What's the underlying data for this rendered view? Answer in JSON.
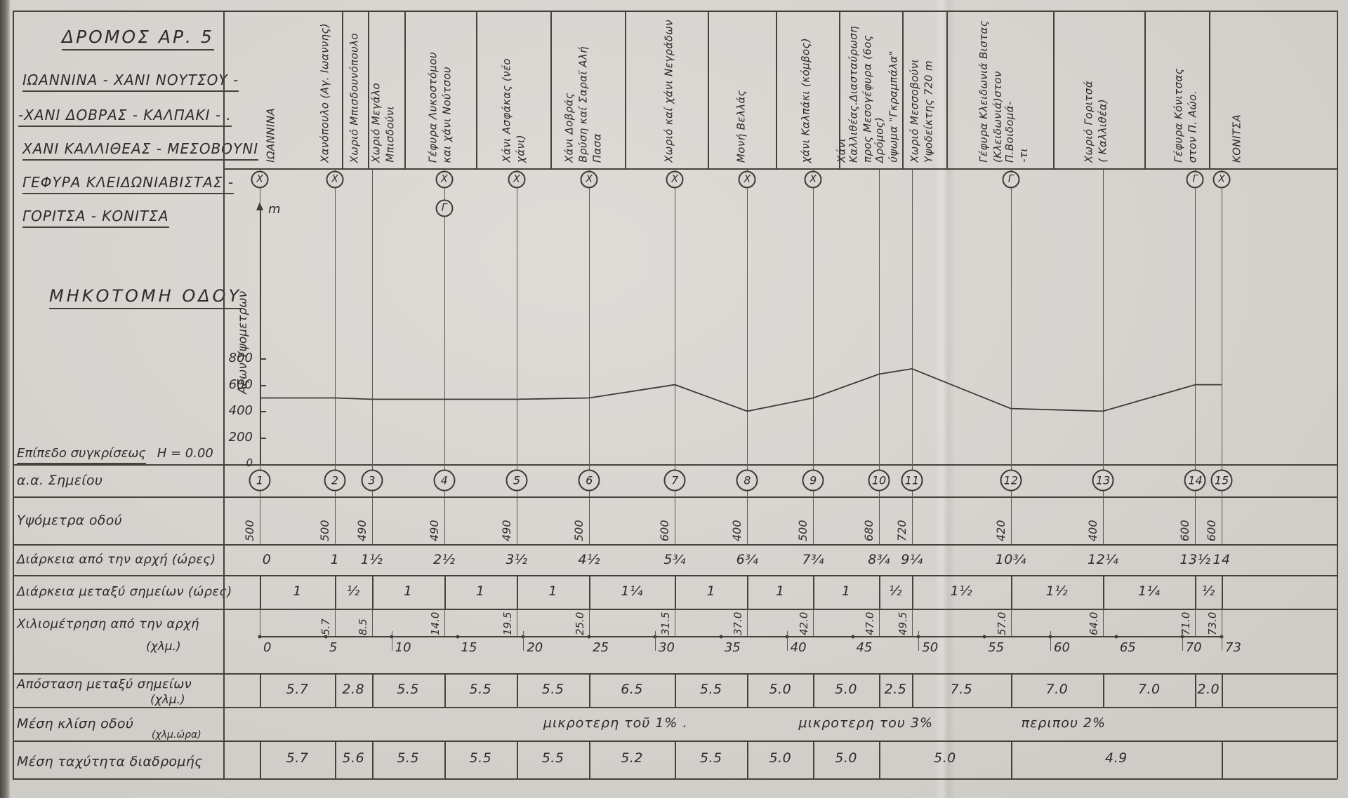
{
  "title_block": {
    "road_no": "ΔΡΟΜΟΣ ΑΡ. 5",
    "route_lines": [
      "ΙΩΑΝΝΙΝΑ - ΧΑΝΙ ΝΟΥΤΣΟΥ -",
      "-ΧΑΝΙ ΔΟΒΡΑΣ - ΚΑΛΠΑΚΙ - .",
      "ΧΑΝΙ ΚΑΛΛΙΘΕΑΣ - ΜΕΣΟΒΟΥΝΙ",
      "ΓΕΦΥΡΑ ΚΛΕΙΔΩΝΙΑΒΙΣΤΑΣ -",
      "ΓΟΡΙΤΣΑ - ΚΟΝΙΤΣΑ"
    ],
    "drawing_type": "ΜΗΚΟΤΟΜΗ ΟΔΟΥ"
  },
  "axis": {
    "label": "Αξων Υψομετρων",
    "unit": "m",
    "ticks": [
      "800",
      "600",
      "400",
      "200",
      "0"
    ],
    "datum_label": "Επίπεδο συγκρίσεως",
    "datum_value": "Η = 0.00"
  },
  "row_labels": {
    "points": "α.α. Σημείου",
    "elevations": "Υψόμετρα οδού",
    "cum_duration": "Διάρκεια από την αρχή (ώρες)",
    "between_duration": "Διάρκεια μεταξύ σημείων (ώρες)",
    "km_line1": "Χιλιομέτρηση από την αρχή",
    "km_line2": "(χλμ.)",
    "dist_line1": "Απόσταση μεταξύ σημείων",
    "dist_line2": "(χλμ.)",
    "slope": "Μέση κλίση οδού",
    "speed_line1": "Μέση ταχύτητα διαδρομής",
    "speed_line2": "(χλμ.ώρα)"
  },
  "stations": [
    {
      "no": "1",
      "km": 0,
      "elev": "500",
      "cum": "0",
      "km_label": "",
      "header": [
        "ΙΩΑΝΝΙΝΑ"
      ],
      "markers": [
        "X"
      ]
    },
    {
      "no": "2",
      "km": 5.7,
      "elev": "500",
      "cum": "1",
      "km_label": "5.7",
      "header": [
        "Χανόπουλο (Αγ. Ιωαννης)"
      ],
      "markers": [
        "X"
      ]
    },
    {
      "no": "3",
      "km": 8.5,
      "elev": "490",
      "cum": "1½",
      "km_label": "8.5",
      "header": [
        "Χωριό Μεγάλο",
        "Μπισδούνι"
      ],
      "markers": []
    },
    {
      "no": "4",
      "km": 14,
      "elev": "490",
      "cum": "2½",
      "km_label": "14.0",
      "header": [
        "Γέφυρα Λυκοστόμου",
        "και χάνι Νούτσου"
      ],
      "markers": [
        "X",
        "Γ"
      ]
    },
    {
      "no": "5",
      "km": 19.5,
      "elev": "490",
      "cum": "3½",
      "km_label": "19.5",
      "header": [
        "Χάνι Ασφάκας (νέο",
        "χάνι)"
      ],
      "markers": [
        "X"
      ]
    },
    {
      "no": "6",
      "km": 25,
      "elev": "500",
      "cum": "4½",
      "km_label": "25.0",
      "header": [
        "Χάνι Δοβράς",
        "Βρύση καί Σαραϊ Αλή",
        "Πασα"
      ],
      "markers": [
        "X"
      ]
    },
    {
      "no": "7",
      "km": 31.5,
      "elev": "600",
      "cum": "5¾",
      "km_label": "31.5",
      "header": [
        "Χωριό καί χάνι Νεγράδων"
      ],
      "markers": [
        "X"
      ]
    },
    {
      "no": "8",
      "km": 37,
      "elev": "400",
      "cum": "6¾",
      "km_label": "37.0",
      "header": [
        "Μονή Βελλάς"
      ],
      "markers": [
        "X"
      ]
    },
    {
      "no": "9",
      "km": 42,
      "elev": "500",
      "cum": "7¾",
      "km_label": "42.0",
      "header": [
        "χάνι Καλπάκι (κόμβος)"
      ],
      "markers": [
        "X"
      ]
    },
    {
      "no": "10",
      "km": 47,
      "elev": "680",
      "cum": "8¾",
      "km_label": "47.0",
      "header": [
        "Χάνι Καλλιθέας.Διασταύρωση",
        "προς Μεσογέφυρα (6ος Δρόμος)",
        "ύψωμα \"Γκραμπάλα\""
      ],
      "markers": []
    },
    {
      "no": "11",
      "km": 49.5,
      "elev": "720",
      "cum": "9¼",
      "km_label": "49.5",
      "header": [
        "Χωριό Μεσσοβούνι",
        "Υψοδείκτης 720 m"
      ],
      "markers": []
    },
    {
      "no": "12",
      "km": 57,
      "elev": "420",
      "cum": "10¾",
      "km_label": "57.0",
      "header": [
        "Γέφυρα Κλειδωνιά Βιστας",
        "(Κλειδωνιά)στον Π.Βοιδομά-",
        "-τι"
      ],
      "markers": [
        "Γ"
      ]
    },
    {
      "no": "13",
      "km": 64,
      "elev": "400",
      "cum": "12¼",
      "km_label": "64.0",
      "header": [
        "Χωριό Γοριτσά",
        "( Καλλιθέα)"
      ],
      "markers": []
    },
    {
      "no": "14",
      "km": 71,
      "elev": "600",
      "cum": "13½",
      "km_label": "71.0",
      "header": [
        "Γέφυρα Κόνιτσας",
        "στον Π. Αώο."
      ],
      "markers": [
        "Γ"
      ]
    },
    {
      "no": "15",
      "km": 73,
      "elev": "600",
      "cum": "14",
      "km_label": "73.0",
      "header": [
        "ΚΟΝΙΤΣΑ"
      ],
      "markers": [
        "X"
      ]
    }
  ],
  "extra_station_label": {
    "header": [
      "Χωριό Μπισδουνόπουλο"
    ]
  },
  "between_durations": [
    "1",
    "½",
    "1",
    "1",
    "1",
    "1¼",
    "1",
    "1",
    "1",
    "½",
    "1½",
    "1½",
    "1¼",
    "½"
  ],
  "distances_between": [
    "5.7",
    "2.8",
    "5.5",
    "5.5",
    "5.5",
    "6.5",
    "5.5",
    "5.0",
    "5.0",
    "2.5",
    "7.5",
    "7.0",
    "7.0",
    "2.0"
  ],
  "speed_cells": [
    {
      "from": 1,
      "to": 2,
      "value": "5.7"
    },
    {
      "from": 2,
      "to": 3,
      "value": "5.6"
    },
    {
      "from": 3,
      "to": 4,
      "value": "5.5"
    },
    {
      "from": 4,
      "to": 5,
      "value": "5.5"
    },
    {
      "from": 5,
      "to": 6,
      "value": "5.5"
    },
    {
      "from": 6,
      "to": 7,
      "value": "5.2"
    },
    {
      "from": 7,
      "to": 8,
      "value": "5.5"
    },
    {
      "from": 8,
      "to": 9,
      "value": "5.0"
    },
    {
      "from": 9,
      "to": 10,
      "value": "5.0"
    },
    {
      "from": 10,
      "to": 12,
      "value": "5.0"
    },
    {
      "from": 12,
      "to": 15,
      "value": "4.9"
    }
  ],
  "slope_notes": [
    {
      "text": "μικροτερη τοῦ 1% .",
      "center_km": 27
    },
    {
      "text": "μικροτερη του 3%",
      "center_km": 46
    },
    {
      "text": "περιπου 2%",
      "center_km": 61
    }
  ],
  "km_ticks": [
    "0",
    "5",
    "10",
    "15",
    "20",
    "25",
    "30",
    "35",
    "40",
    "45",
    "50",
    "55",
    "60",
    "65",
    "70",
    "73"
  ],
  "chart_data": {
    "type": "line",
    "title": "ΜΗΚΟΤΟΜΗ ΟΔΟΥ — ΔΡΟΜΟΣ ΑΡ. 5 (ΙΩΑΝΝΙΝΑ - ΚΟΝΙΤΣΑ)",
    "xlabel": "Χιλιομέτρηση από την αρχή (χλμ.)",
    "ylabel": "Υψόμετρα οδού (m)",
    "x_km": [
      0,
      5.7,
      8.5,
      14,
      19.5,
      25,
      31.5,
      37,
      42,
      47,
      49.5,
      57,
      64,
      71,
      73
    ],
    "y_elevation_m": [
      500,
      500,
      490,
      490,
      490,
      500,
      600,
      400,
      500,
      680,
      720,
      420,
      400,
      600,
      600
    ],
    "xlim": [
      0,
      73
    ],
    "ylim": [
      0,
      800
    ],
    "legend_position": "none",
    "grid": false
  }
}
